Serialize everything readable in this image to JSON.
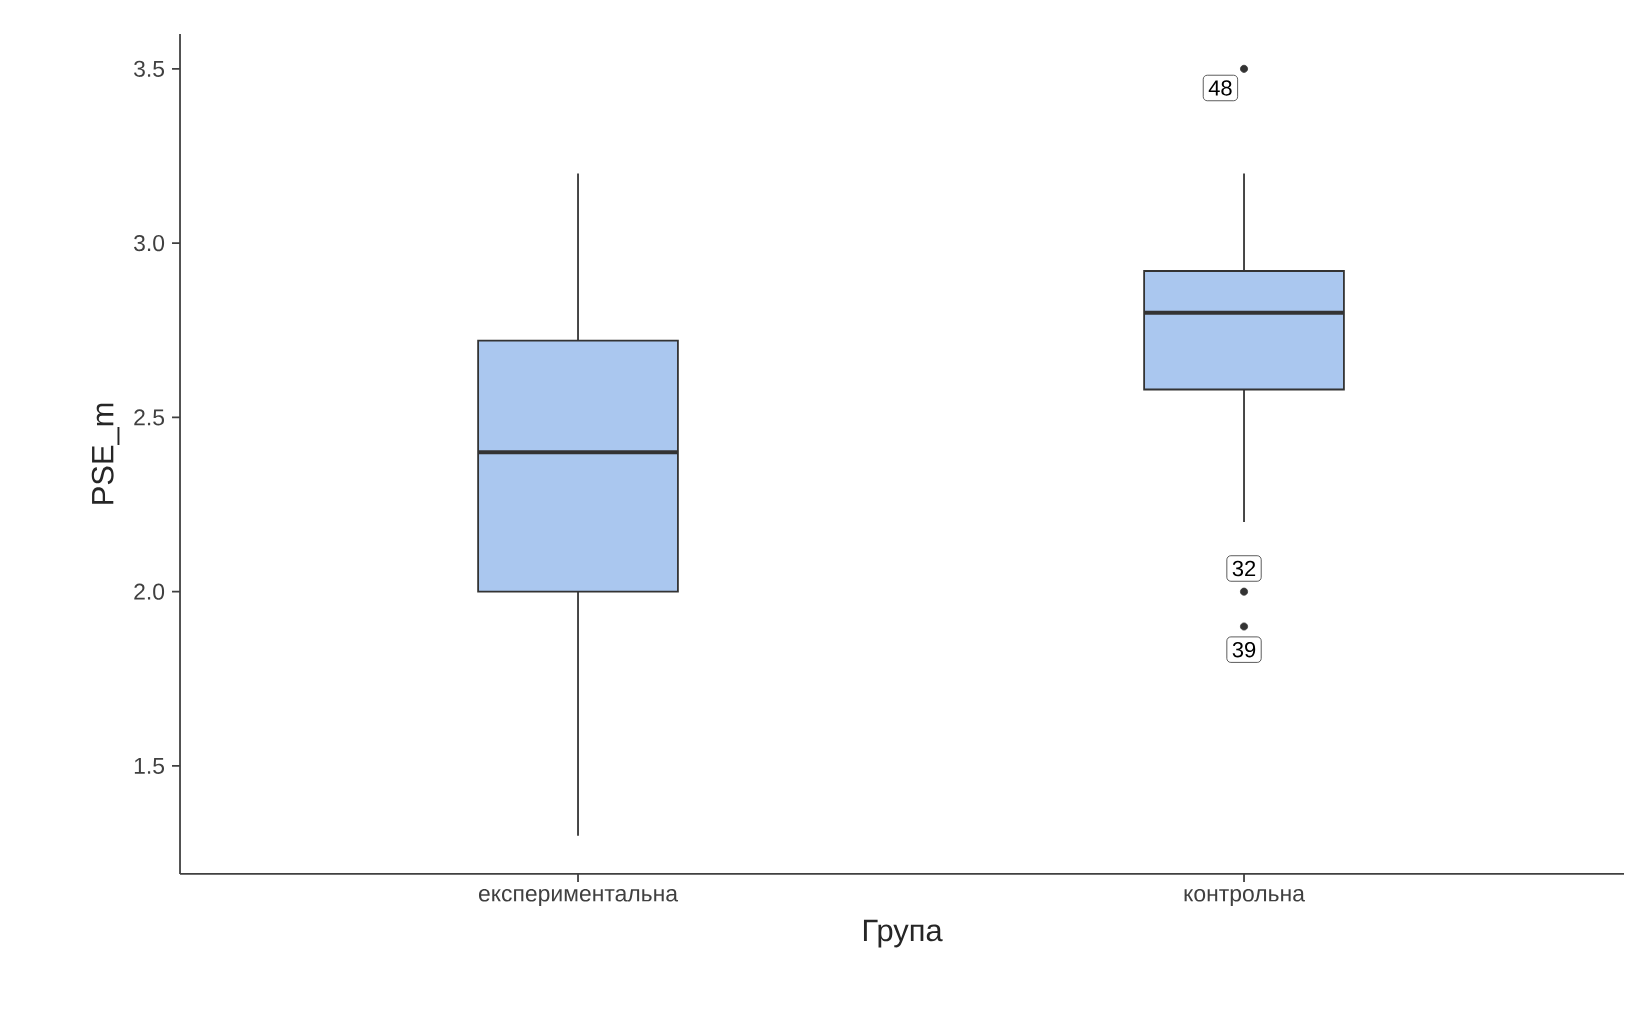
{
  "chart_data": {
    "type": "box",
    "xlabel": "Група",
    "ylabel": "PSE_m",
    "categories": [
      "експериментальна",
      "контрольна"
    ],
    "color": "#aac7ef",
    "boxes": [
      {
        "low": 1.3,
        "q1": 2.0,
        "median": 2.4,
        "q3": 2.72,
        "high": 3.2
      },
      {
        "low": 2.2,
        "q1": 2.58,
        "median": 2.8,
        "q3": 2.92,
        "high": 3.2,
        "outliers": [
          3.5,
          2.0,
          1.9
        ]
      }
    ],
    "ylim": [
      1.19,
      3.6
    ],
    "yticks": [
      {
        "value": 1.5,
        "label": "1.5"
      },
      {
        "value": 2,
        "label": "2.0"
      },
      {
        "value": 2.5,
        "label": "2.5"
      },
      {
        "value": 3,
        "label": "3.0"
      },
      {
        "value": 3.5,
        "label": "3.5"
      }
    ],
    "grid": false,
    "annotations": [
      "48",
      "32",
      "39"
    ]
  }
}
